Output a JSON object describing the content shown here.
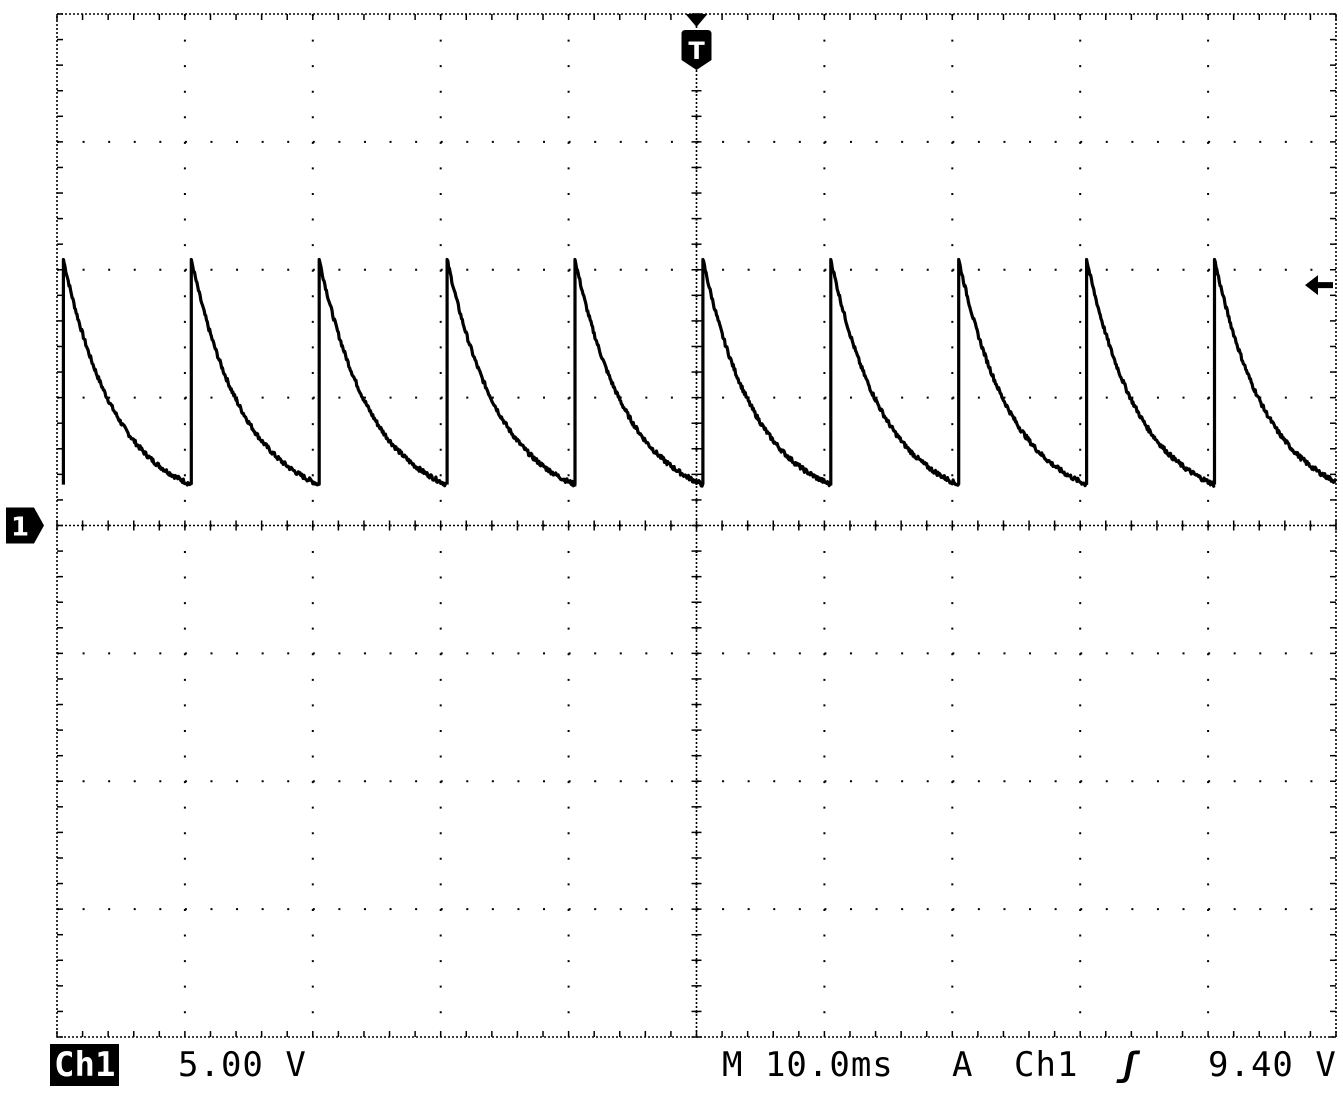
{
  "chart_data": {
    "type": "line",
    "title": "",
    "xlabel": "",
    "ylabel": "",
    "grid": true,
    "divisions": {
      "x": 10,
      "y": 8
    },
    "xlim_ms": [
      -50,
      50
    ],
    "ylim_V": [
      -20,
      20
    ],
    "ground_marker_label": "1",
    "trigger_marker_label": "T",
    "trigger_position_ms": 0,
    "trigger_level_V": 9.4,
    "series": [
      {
        "channel": "Ch1",
        "shape": "sawtooth-exponential-decay",
        "period_ms": 10.0,
        "first_peak_ms": -49.5,
        "peak_V": 10.4,
        "trough_V": 1.6,
        "decay_time_constant_ms": 4.2,
        "color": "#000000"
      }
    ]
  },
  "status": {
    "channel_badge": "Ch1",
    "volts_per_div": "5.00 V",
    "timebase": "M 10.0ms",
    "trigger_mode": "A",
    "trigger_source": "Ch1",
    "trigger_slope": "ʃ",
    "trigger_level": "9.40 V"
  }
}
